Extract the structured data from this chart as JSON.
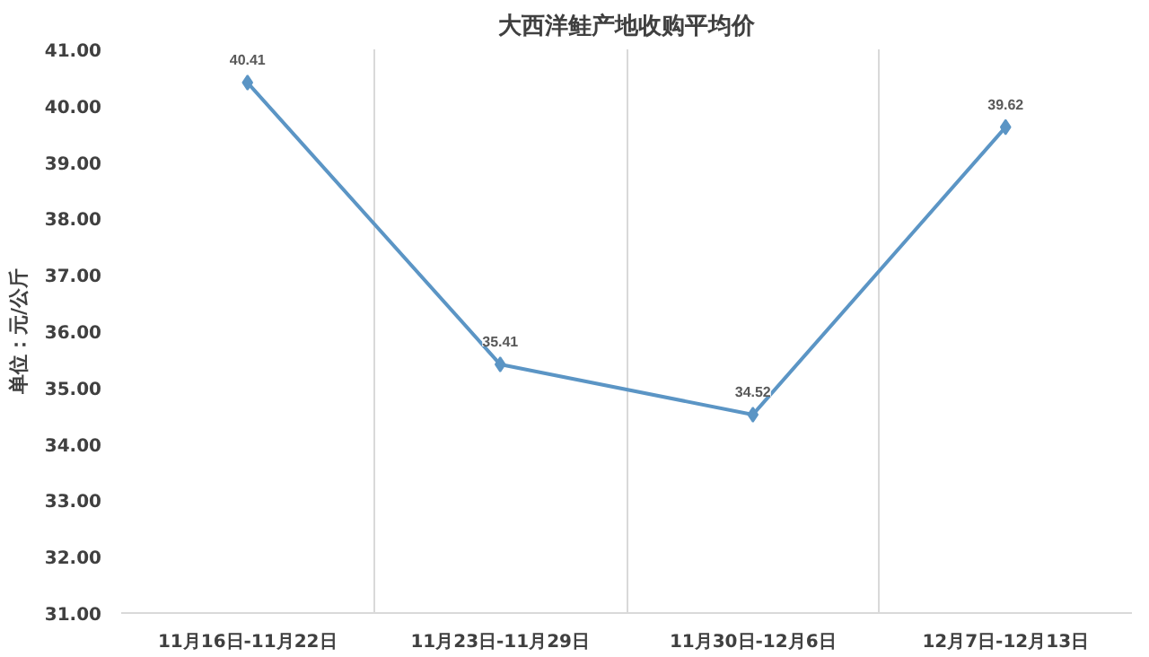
{
  "chart_data": {
    "type": "line",
    "title": "大西洋鲑产地收购平均价",
    "ylabel": "单位：元/公斤",
    "categories": [
      "11月16日-11月22日",
      "11月23日-11月29日",
      "11月30日-12月6日",
      "12月7日-12月13日"
    ],
    "series": [
      {
        "color": "#5b95c5",
        "values": [
          40.41,
          35.41,
          34.52,
          39.62
        ]
      }
    ],
    "ylim": [
      31,
      41
    ],
    "yticks": [
      {
        "value": 31,
        "label": "31.00"
      },
      {
        "value": 32,
        "label": "32.00"
      },
      {
        "value": 33,
        "label": "33.00"
      },
      {
        "value": 34,
        "label": "34.00"
      },
      {
        "value": 35,
        "label": "35.00"
      },
      {
        "value": 36,
        "label": "36.00"
      },
      {
        "value": 37,
        "label": "37.00"
      },
      {
        "value": 38,
        "label": "38.00"
      },
      {
        "value": 39,
        "label": "39.00"
      },
      {
        "value": 40,
        "label": "40.00"
      },
      {
        "value": 41,
        "label": "41.00"
      }
    ],
    "grid": "x",
    "marker": "diamond",
    "line_style": "solid",
    "data_labels": true
  }
}
